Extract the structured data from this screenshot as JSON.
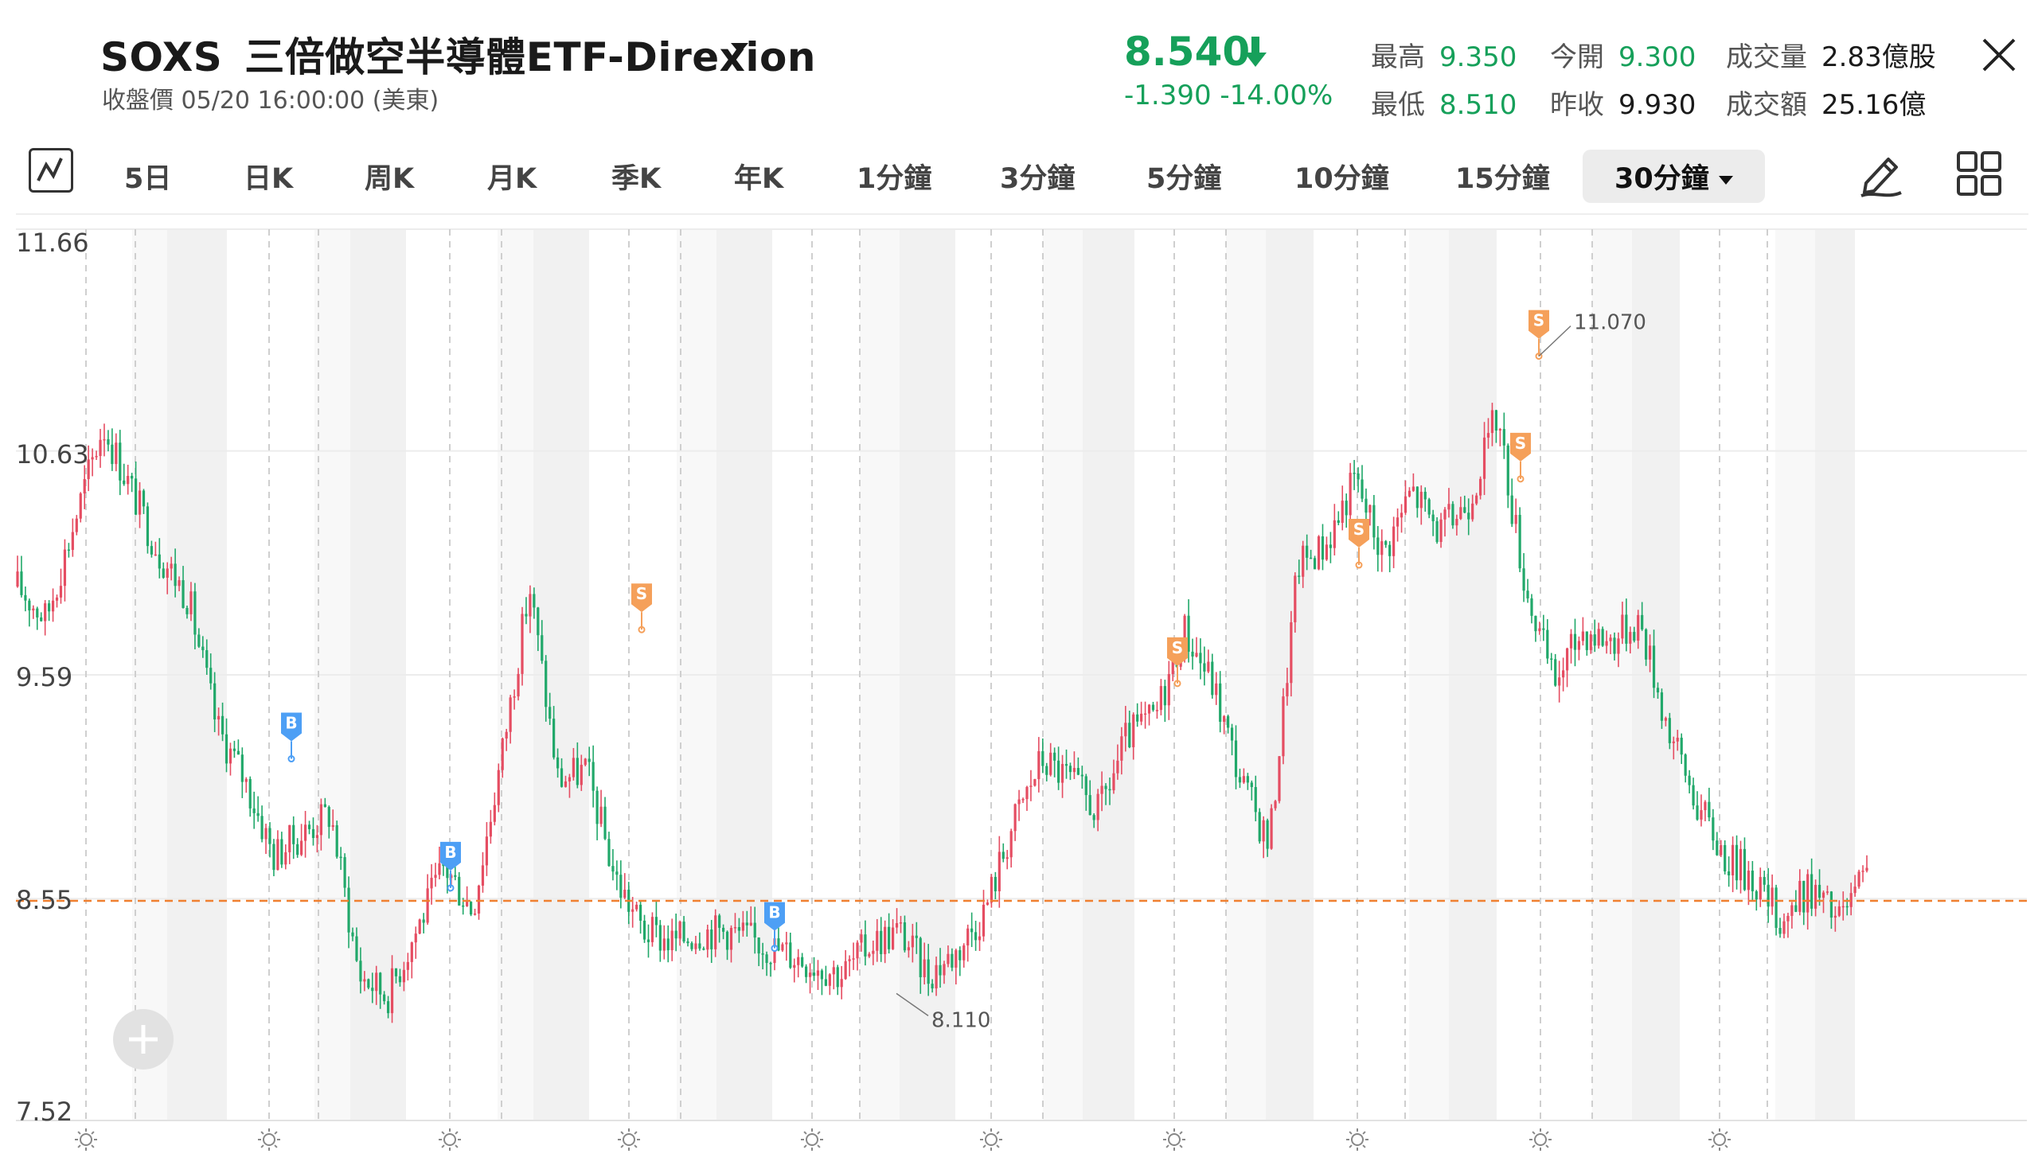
{
  "header": {
    "symbol": "SOXS",
    "name": "三倍做空半導體ETF-Direxion",
    "close_time": "收盤價 05/20 16:00:00 (美東)",
    "price": "8.540",
    "change": "-1.390 -14.00%",
    "price_color": "#16a05a",
    "stats": [
      {
        "label": "最高",
        "value": "9.350",
        "green": true
      },
      {
        "label": "今開",
        "value": "9.300",
        "green": true
      },
      {
        "label": "成交量",
        "value": "2.83億股",
        "green": false
      },
      {
        "label": "最低",
        "value": "8.510",
        "green": true
      },
      {
        "label": "昨收",
        "value": "9.930",
        "green": false
      },
      {
        "label": "成交額",
        "value": "25.16億",
        "green": false
      }
    ]
  },
  "toolbar": {
    "tabs": [
      "5日",
      "日K",
      "周K",
      "月K",
      "季K",
      "年K",
      "1分鐘",
      "3分鐘",
      "5分鐘",
      "10分鐘",
      "15分鐘"
    ],
    "active_tab": "30分鐘"
  },
  "chart_data": {
    "type": "candlestick",
    "interval": "30分鐘",
    "y_ticks": [
      "11.66",
      "10.63",
      "9.59",
      "8.55",
      "7.52"
    ],
    "ylim": [
      7.52,
      11.66
    ],
    "close_price": 8.54,
    "trend": [
      10.0,
      9.85,
      10.3,
      10.75,
      10.45,
      10.15,
      9.95,
      9.35,
      9.1,
      8.75,
      8.85,
      8.95,
      8.2,
      8.1,
      8.4,
      8.7,
      8.5,
      9.2,
      10.0,
      9.1,
      9.15,
      8.65,
      8.4,
      8.35,
      8.4,
      8.4,
      8.35,
      8.3,
      8.25,
      8.2,
      8.35,
      8.4,
      8.2,
      8.3,
      8.5,
      8.9,
      9.2,
      9.1,
      8.95,
      9.3,
      9.4,
      9.8,
      9.55,
      9.1,
      8.8,
      10.1,
      10.2,
      10.5,
      10.15,
      10.45,
      10.25,
      10.4,
      10.8,
      10.0,
      9.55,
      9.8,
      9.75,
      9.85,
      9.35,
      9.0,
      8.75,
      8.65,
      8.45,
      8.6,
      8.45,
      8.65
    ],
    "markers": [
      {
        "type": "B",
        "price": 9.2
      },
      {
        "type": "B",
        "price": 8.6
      },
      {
        "type": "B",
        "price": 8.32
      },
      {
        "type": "S",
        "price": 9.8
      },
      {
        "type": "S",
        "price": 9.55
      },
      {
        "type": "S",
        "price": 10.1
      },
      {
        "type": "S",
        "price": 10.5
      },
      {
        "type": "S",
        "price": 11.07
      }
    ],
    "annotations": [
      {
        "label": "11.070",
        "value": 11.07
      },
      {
        "label": "8.110",
        "value": 8.11
      }
    ],
    "colors": {
      "up": "#e54d62",
      "down": "#21a86a",
      "buy": "#4d9ff5",
      "sell": "#f5a05a",
      "close_line": "#f08030"
    }
  }
}
